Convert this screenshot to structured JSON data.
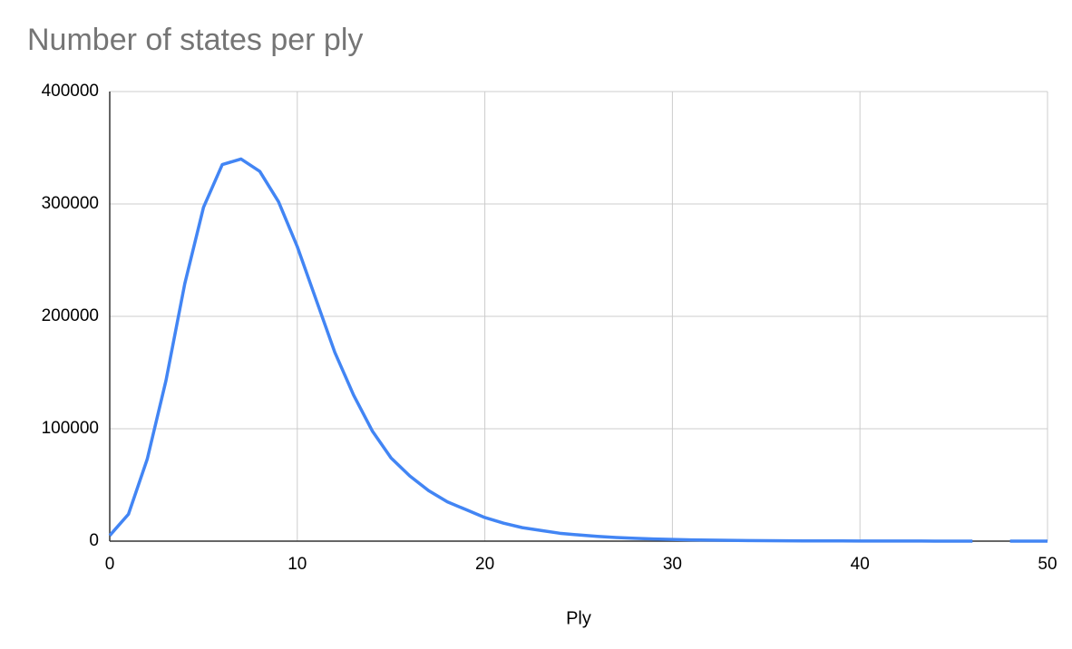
{
  "chart_data": {
    "type": "line",
    "title": "Number of states per ply",
    "x_label": "Ply",
    "x": [
      0,
      1,
      2,
      3,
      4,
      5,
      6,
      7,
      8,
      9,
      10,
      11,
      12,
      13,
      14,
      15,
      16,
      17,
      18,
      19,
      20,
      21,
      22,
      23,
      24,
      25,
      26,
      27,
      28,
      29,
      30,
      31,
      32,
      33,
      34,
      35,
      36,
      37,
      38,
      39,
      40,
      41,
      42,
      43,
      44,
      45,
      46,
      47,
      48,
      49,
      50
    ],
    "values": [
      5000,
      24000,
      73000,
      143000,
      229000,
      297000,
      335000,
      340000,
      329000,
      302000,
      262000,
      215000,
      168000,
      130000,
      98000,
      74000,
      58000,
      45000,
      35000,
      28000,
      21000,
      16000,
      12000,
      9500,
      7000,
      5500,
      4200,
      3200,
      2500,
      1900,
      1500,
      1100,
      900,
      700,
      500,
      400,
      300,
      250,
      200,
      150,
      120,
      100,
      80,
      60,
      50,
      40,
      30,
      null,
      10,
      5,
      2
    ],
    "color": "#4285f4",
    "xlim": [
      0,
      50
    ],
    "xticks": [
      0,
      10,
      20,
      30,
      40,
      50
    ],
    "ylim": [
      0,
      400000
    ],
    "yticks": [
      0,
      100000,
      200000,
      300000,
      400000
    ],
    "grid": true
  }
}
